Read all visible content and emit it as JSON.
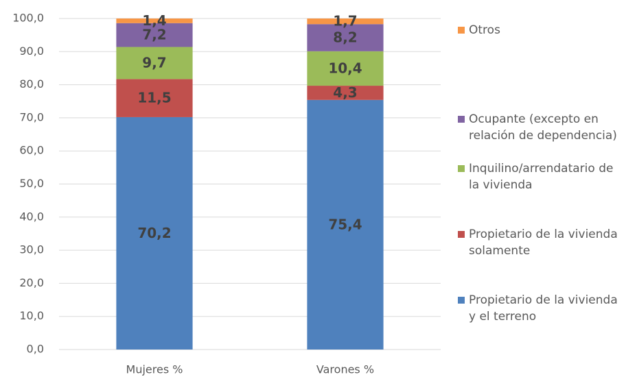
{
  "chart_data": {
    "type": "stacked_bar",
    "categories": [
      "Mujeres %",
      "Varones %"
    ],
    "series": [
      {
        "name": "Propietario de la vivienda y el terreno",
        "color": "#4f81bd",
        "values": [
          70.2,
          75.4
        ],
        "value_labels": [
          "70,2",
          "75,4"
        ]
      },
      {
        "name": "Propietario de la vivienda solamente",
        "color": "#c0504d",
        "values": [
          11.5,
          4.3
        ],
        "value_labels": [
          "11,5",
          "4,3"
        ]
      },
      {
        "name": "Inquilino/arrendatario de la vivienda",
        "color": "#9bbb59",
        "values": [
          9.7,
          10.4
        ],
        "value_labels": [
          "9,7",
          "10,4"
        ]
      },
      {
        "name": "Ocupante (excepto en relación de dependencia)",
        "color": "#8064a2",
        "values": [
          7.2,
          8.2
        ],
        "value_labels": [
          "7,2",
          "8,2"
        ]
      },
      {
        "name": "Otros",
        "color": "#f79646",
        "values": [
          1.4,
          1.7
        ],
        "value_labels": [
          "1,4",
          "1,7"
        ]
      }
    ],
    "ylim": [
      0,
      100
    ],
    "yticks": [
      {
        "value": 0,
        "label": "0,0"
      },
      {
        "value": 10,
        "label": "10,0"
      },
      {
        "value": 20,
        "label": "20,0"
      },
      {
        "value": 30,
        "label": "30,0"
      },
      {
        "value": 40,
        "label": "40,0"
      },
      {
        "value": 50,
        "label": "50,0"
      },
      {
        "value": 60,
        "label": "60,0"
      },
      {
        "value": 70,
        "label": "70,0"
      },
      {
        "value": 80,
        "label": "80,0"
      },
      {
        "value": 90,
        "label": "90,0"
      },
      {
        "value": 100,
        "label": "100,0"
      }
    ],
    "grid": true,
    "legend": "right"
  }
}
